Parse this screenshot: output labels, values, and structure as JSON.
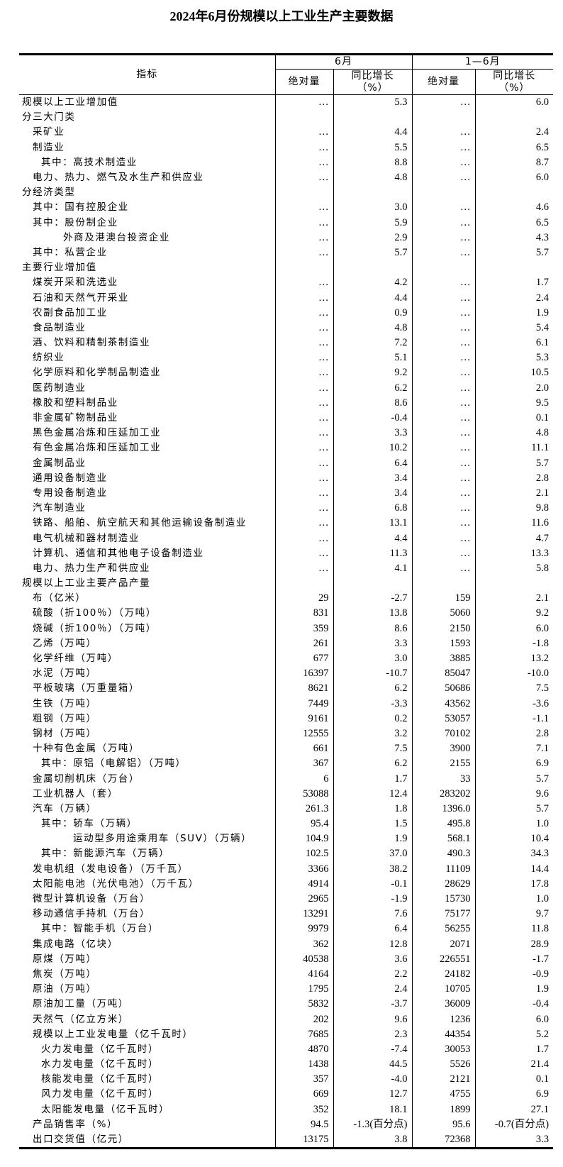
{
  "title": "2024年6月份规模以上工业生产主要数据",
  "header": {
    "indicator": "指标",
    "period1": "6月",
    "period2": "1—6月",
    "absolute": "绝对量",
    "growth": "同比增长",
    "growth_unit": "（%）"
  },
  "rows": [
    {
      "label": "规模以上工业增加值",
      "level": 0,
      "v": [
        "…",
        "5.3",
        "…",
        "6.0"
      ]
    },
    {
      "label": "分三大门类",
      "level": 0,
      "v": [
        "",
        "",
        "",
        ""
      ]
    },
    {
      "label": "采矿业",
      "level": 1,
      "v": [
        "…",
        "4.4",
        "…",
        "2.4"
      ]
    },
    {
      "label": "制造业",
      "level": 1,
      "v": [
        "…",
        "5.5",
        "…",
        "6.5"
      ]
    },
    {
      "label": "其中：高技术制造业",
      "level": 2,
      "v": [
        "…",
        "8.8",
        "…",
        "8.7"
      ]
    },
    {
      "label": "电力、热力、燃气及水生产和供应业",
      "level": 1,
      "v": [
        "…",
        "4.8",
        "…",
        "6.0"
      ]
    },
    {
      "label": "分经济类型",
      "level": 0,
      "v": [
        "",
        "",
        "",
        ""
      ]
    },
    {
      "label": "其中：国有控股企业",
      "level": 1,
      "v": [
        "…",
        "3.0",
        "…",
        "4.6"
      ]
    },
    {
      "label": "其中：股份制企业",
      "level": 1,
      "v": [
        "…",
        "5.9",
        "…",
        "6.5"
      ]
    },
    {
      "label": "外商及港澳台投资企业",
      "level": 3,
      "v": [
        "…",
        "2.9",
        "…",
        "4.3"
      ]
    },
    {
      "label": "其中：私营企业",
      "level": 1,
      "v": [
        "…",
        "5.7",
        "…",
        "5.7"
      ]
    },
    {
      "label": "主要行业增加值",
      "level": 0,
      "v": [
        "",
        "",
        "",
        ""
      ]
    },
    {
      "label": "煤炭开采和洗选业",
      "level": 1,
      "v": [
        "…",
        "4.2",
        "…",
        "1.7"
      ]
    },
    {
      "label": "石油和天然气开采业",
      "level": 1,
      "v": [
        "…",
        "4.4",
        "…",
        "2.4"
      ]
    },
    {
      "label": "农副食品加工业",
      "level": 1,
      "v": [
        "…",
        "0.9",
        "…",
        "1.9"
      ]
    },
    {
      "label": "食品制造业",
      "level": 1,
      "v": [
        "…",
        "4.8",
        "…",
        "5.4"
      ]
    },
    {
      "label": "酒、饮料和精制茶制造业",
      "level": 1,
      "v": [
        "…",
        "7.2",
        "…",
        "6.1"
      ]
    },
    {
      "label": "纺织业",
      "level": 1,
      "v": [
        "…",
        "5.1",
        "…",
        "5.3"
      ]
    },
    {
      "label": "化学原料和化学制品制造业",
      "level": 1,
      "v": [
        "…",
        "9.2",
        "…",
        "10.5"
      ]
    },
    {
      "label": "医药制造业",
      "level": 1,
      "v": [
        "…",
        "6.2",
        "…",
        "2.0"
      ]
    },
    {
      "label": "橡胶和塑料制品业",
      "level": 1,
      "v": [
        "…",
        "8.6",
        "…",
        "9.5"
      ]
    },
    {
      "label": "非金属矿物制品业",
      "level": 1,
      "v": [
        "…",
        "-0.4",
        "…",
        "0.1"
      ]
    },
    {
      "label": "黑色金属冶炼和压延加工业",
      "level": 1,
      "v": [
        "…",
        "3.3",
        "…",
        "4.8"
      ]
    },
    {
      "label": "有色金属冶炼和压延加工业",
      "level": 1,
      "v": [
        "…",
        "10.2",
        "…",
        "11.1"
      ]
    },
    {
      "label": "金属制品业",
      "level": 1,
      "v": [
        "…",
        "6.4",
        "…",
        "5.7"
      ]
    },
    {
      "label": "通用设备制造业",
      "level": 1,
      "v": [
        "…",
        "3.4",
        "…",
        "2.8"
      ]
    },
    {
      "label": "专用设备制造业",
      "level": 1,
      "v": [
        "…",
        "3.4",
        "…",
        "2.1"
      ]
    },
    {
      "label": "汽车制造业",
      "level": 1,
      "v": [
        "…",
        "6.8",
        "…",
        "9.8"
      ]
    },
    {
      "label": "铁路、船舶、航空航天和其他运输设备制造业",
      "level": 1,
      "v": [
        "…",
        "13.1",
        "…",
        "11.6"
      ]
    },
    {
      "label": "电气机械和器材制造业",
      "level": 1,
      "v": [
        "…",
        "4.4",
        "…",
        "4.7"
      ]
    },
    {
      "label": "计算机、通信和其他电子设备制造业",
      "level": 1,
      "v": [
        "…",
        "11.3",
        "…",
        "13.3"
      ]
    },
    {
      "label": "电力、热力生产和供应业",
      "level": 1,
      "v": [
        "…",
        "4.1",
        "…",
        "5.8"
      ]
    },
    {
      "label": "规模以上工业主要产品产量",
      "level": 0,
      "v": [
        "",
        "",
        "",
        ""
      ]
    },
    {
      "label": "布（亿米）",
      "level": 1,
      "v": [
        "29",
        "-2.7",
        "159",
        "2.1"
      ]
    },
    {
      "label": "硫酸（折100％）（万吨）",
      "level": 1,
      "v": [
        "831",
        "13.8",
        "5060",
        "9.2"
      ]
    },
    {
      "label": "烧碱（折100％）（万吨）",
      "level": 1,
      "v": [
        "359",
        "8.6",
        "2150",
        "6.0"
      ]
    },
    {
      "label": "乙烯（万吨）",
      "level": 1,
      "v": [
        "261",
        "3.3",
        "1593",
        "-1.8"
      ]
    },
    {
      "label": "化学纤维（万吨）",
      "level": 1,
      "v": [
        "677",
        "3.0",
        "3885",
        "13.2"
      ]
    },
    {
      "label": "水泥（万吨）",
      "level": 1,
      "v": [
        "16397",
        "-10.7",
        "85047",
        "-10.0"
      ]
    },
    {
      "label": "平板玻璃（万重量箱）",
      "level": 1,
      "v": [
        "8621",
        "6.2",
        "50686",
        "7.5"
      ]
    },
    {
      "label": "生铁（万吨）",
      "level": 1,
      "v": [
        "7449",
        "-3.3",
        "43562",
        "-3.6"
      ]
    },
    {
      "label": "粗钢（万吨）",
      "level": 1,
      "v": [
        "9161",
        "0.2",
        "53057",
        "-1.1"
      ]
    },
    {
      "label": "钢材（万吨）",
      "level": 1,
      "v": [
        "12555",
        "3.2",
        "70102",
        "2.8"
      ]
    },
    {
      "label": "十种有色金属（万吨）",
      "level": 1,
      "v": [
        "661",
        "7.5",
        "3900",
        "7.1"
      ]
    },
    {
      "label": "其中：原铝（电解铝）（万吨）",
      "level": 2,
      "v": [
        "367",
        "6.2",
        "2155",
        "6.9"
      ]
    },
    {
      "label": "金属切削机床（万台）",
      "level": 1,
      "v": [
        "6",
        "1.7",
        "33",
        "5.7"
      ]
    },
    {
      "label": "工业机器人（套）",
      "level": 1,
      "v": [
        "53088",
        "12.4",
        "283202",
        "9.6"
      ]
    },
    {
      "label": "汽车（万辆）",
      "level": 1,
      "v": [
        "261.3",
        "1.8",
        "1396.0",
        "5.7"
      ]
    },
    {
      "label": "其中：轿车（万辆）",
      "level": 2,
      "v": [
        "95.4",
        "1.5",
        "495.8",
        "1.0"
      ]
    },
    {
      "label": "运动型多用途乘用车（SUV）（万辆）",
      "level": 4,
      "v": [
        "104.9",
        "1.9",
        "568.1",
        "10.4"
      ]
    },
    {
      "label": "其中：新能源汽车（万辆）",
      "level": 2,
      "v": [
        "102.5",
        "37.0",
        "490.3",
        "34.3"
      ]
    },
    {
      "label": "发电机组（发电设备）（万千瓦）",
      "level": 1,
      "v": [
        "3366",
        "38.2",
        "11109",
        "14.4"
      ]
    },
    {
      "label": "太阳能电池（光伏电池）（万千瓦）",
      "level": 1,
      "v": [
        "4914",
        "-0.1",
        "28629",
        "17.8"
      ]
    },
    {
      "label": "微型计算机设备（万台）",
      "level": 1,
      "v": [
        "2965",
        "-1.9",
        "15730",
        "1.0"
      ]
    },
    {
      "label": "移动通信手持机（万台）",
      "level": 1,
      "v": [
        "13291",
        "7.6",
        "75177",
        "9.7"
      ]
    },
    {
      "label": "其中：智能手机（万台）",
      "level": 2,
      "v": [
        "9979",
        "6.4",
        "56255",
        "11.8"
      ]
    },
    {
      "label": "集成电路（亿块）",
      "level": 1,
      "v": [
        "362",
        "12.8",
        "2071",
        "28.9"
      ]
    },
    {
      "label": "原煤（万吨）",
      "level": 1,
      "v": [
        "40538",
        "3.6",
        "226551",
        "-1.7"
      ]
    },
    {
      "label": "焦炭（万吨）",
      "level": 1,
      "v": [
        "4164",
        "2.2",
        "24182",
        "-0.9"
      ]
    },
    {
      "label": "原油（万吨）",
      "level": 1,
      "v": [
        "1795",
        "2.4",
        "10705",
        "1.9"
      ]
    },
    {
      "label": "原油加工量（万吨）",
      "level": 1,
      "v": [
        "5832",
        "-3.7",
        "36009",
        "-0.4"
      ]
    },
    {
      "label": "天然气（亿立方米）",
      "level": 1,
      "v": [
        "202",
        "9.6",
        "1236",
        "6.0"
      ]
    },
    {
      "label": "规模以上工业发电量（亿千瓦时）",
      "level": 1,
      "v": [
        "7685",
        "2.3",
        "44354",
        "5.2"
      ]
    },
    {
      "label": "火力发电量（亿千瓦时）",
      "level": 2,
      "v": [
        "4870",
        "-7.4",
        "30053",
        "1.7"
      ]
    },
    {
      "label": "水力发电量（亿千瓦时）",
      "level": 2,
      "v": [
        "1438",
        "44.5",
        "5526",
        "21.4"
      ]
    },
    {
      "label": "核能发电量（亿千瓦时）",
      "level": 2,
      "v": [
        "357",
        "-4.0",
        "2121",
        "0.1"
      ]
    },
    {
      "label": "风力发电量（亿千瓦时）",
      "level": 2,
      "v": [
        "669",
        "12.7",
        "4755",
        "6.9"
      ]
    },
    {
      "label": "太阳能发电量（亿千瓦时）",
      "level": 2,
      "v": [
        "352",
        "18.1",
        "1899",
        "27.1"
      ]
    },
    {
      "label": "产品销售率（%）",
      "level": 1,
      "v": [
        "94.5",
        "-1.3(百分点)",
        "95.6",
        "-0.7(百分点)"
      ]
    },
    {
      "label": "出口交货值（亿元）",
      "level": 1,
      "v": [
        "13175",
        "3.8",
        "72368",
        "3.3"
      ]
    }
  ]
}
